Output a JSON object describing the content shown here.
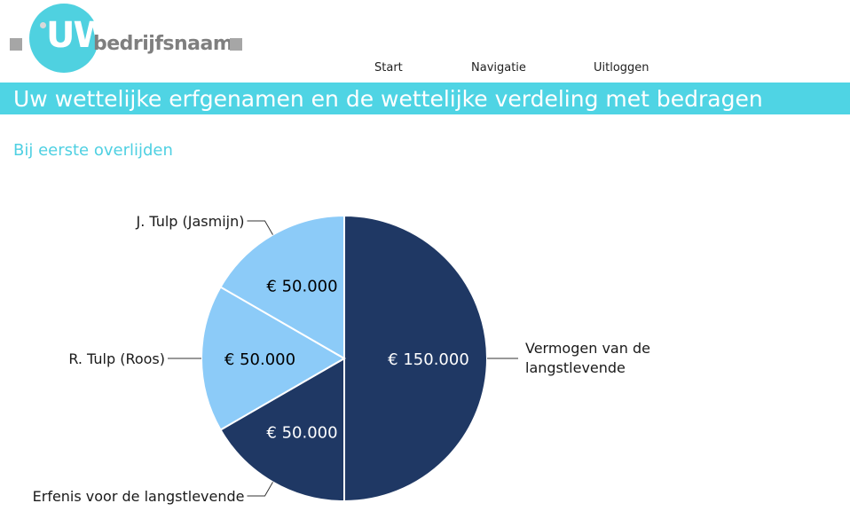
{
  "brand": {
    "logo_mark": "UW",
    "logo_name": "bedrijfsnaam"
  },
  "nav": {
    "items": [
      "Start",
      "Navigatie",
      "Uitloggen"
    ]
  },
  "page": {
    "title": "Uw wettelijke erfgenamen en de wettelijke verdeling met bedragen",
    "subtitle": "Bij eerste overlijden"
  },
  "colors": {
    "accent": "#4fd4e4",
    "dark_slice": "#1f3864",
    "light_slice": "#8ccbf8"
  },
  "chart_data": {
    "type": "pie",
    "title": "",
    "slices": [
      {
        "label": "Vermogen van de langstlevende",
        "value": 150000,
        "value_label": "€ 150.000",
        "color": "#1f3864"
      },
      {
        "label": "Erfenis voor de langstlevende",
        "value": 50000,
        "value_label": "€ 50.000",
        "color": "#1f3864"
      },
      {
        "label": "R. Tulp (Roos)",
        "value": 50000,
        "value_label": "€ 50.000",
        "color": "#8ccbf8"
      },
      {
        "label": "J. Tulp (Jasmijn)",
        "value": 50000,
        "value_label": "€ 50.000",
        "color": "#8ccbf8"
      }
    ]
  }
}
